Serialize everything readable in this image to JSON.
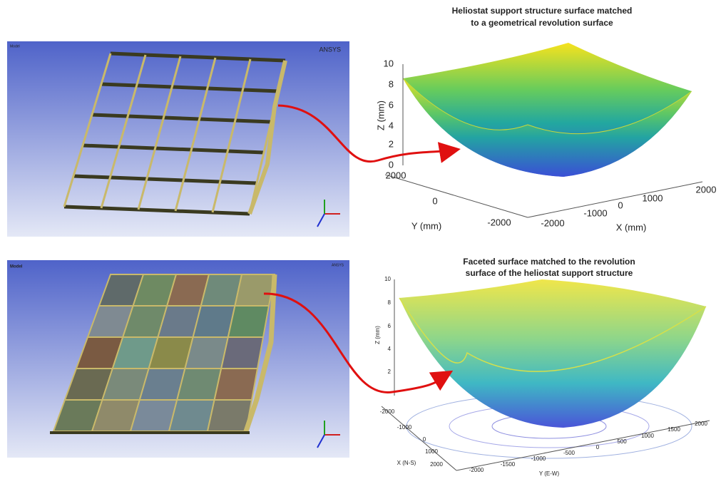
{
  "top_model": {
    "label": "Model",
    "logo": "ANSYS"
  },
  "top_plot": {
    "title": [
      "Heliostat support structure surface matched",
      "to a geometrical revolution surface"
    ],
    "z_label": "Z (mm)",
    "y_label": "Y (mm)",
    "x_label": "X (mm)",
    "z_ticks": [
      0,
      2,
      4,
      6,
      8,
      10
    ],
    "y_ticks": [
      2000,
      0,
      -2000
    ],
    "x_ticks": [
      -2000,
      -1000,
      0,
      1000,
      2000
    ]
  },
  "bottom_model": {
    "label": "Model",
    "logo": "ANSYS"
  },
  "bottom_plot": {
    "title": [
      "Faceted surface matched to the revolution",
      "surface of the heliostat support structure"
    ],
    "z_label": "Z (mm)",
    "x_label": "X (N-S)",
    "y_label": "Y (E-W)",
    "z_ticks": [
      2,
      4,
      6,
      8,
      10
    ],
    "x_ticks": [
      -2000,
      -1000,
      0,
      1000,
      2000
    ],
    "y_ticks": [
      -2000,
      -1500,
      -1000,
      -500,
      0,
      500,
      1000,
      1500,
      2000
    ]
  }
}
